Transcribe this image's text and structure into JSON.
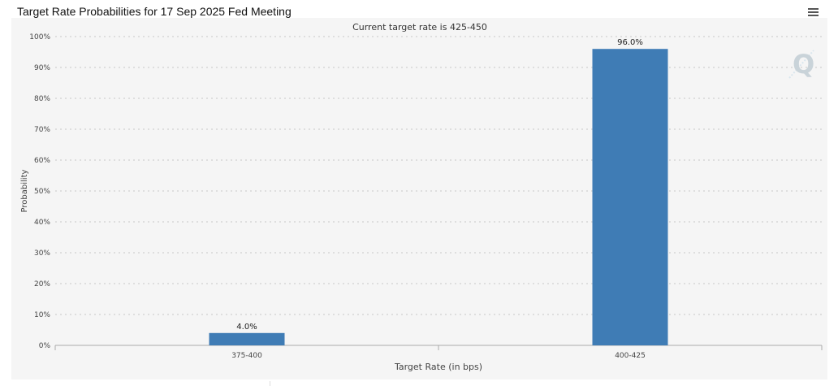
{
  "window": {
    "title": "Target Rate Probabilities for 17 Sep 2025 Fed Meeting",
    "menu_icon": "hamburger-menu-icon",
    "watermark_icon": "q-logo-icon"
  },
  "colors": {
    "bar": "#3f7cb5",
    "grid": "#c8c8c8",
    "axis": "#aaaaaa",
    "panel_bg": "#f5f5f5"
  },
  "chart_data": {
    "type": "bar",
    "title": "Target Rate Probabilities for 17 Sep 2025 Fed Meeting",
    "subtitle": "Current target rate is 425-450",
    "xlabel": "Target Rate (in bps)",
    "ylabel": "Probability",
    "categories": [
      "375-400",
      "400-425"
    ],
    "values": [
      4.0,
      96.0
    ],
    "data_labels": [
      "4.0%",
      "96.0%"
    ],
    "ylim": [
      0,
      100
    ],
    "yticks": [
      0,
      10,
      20,
      30,
      40,
      50,
      60,
      70,
      80,
      90,
      100
    ],
    "ytick_labels": [
      "0%",
      "10%",
      "20%",
      "30%",
      "40%",
      "50%",
      "60%",
      "70%",
      "80%",
      "90%",
      "100%"
    ],
    "grid": true,
    "legend": false
  }
}
